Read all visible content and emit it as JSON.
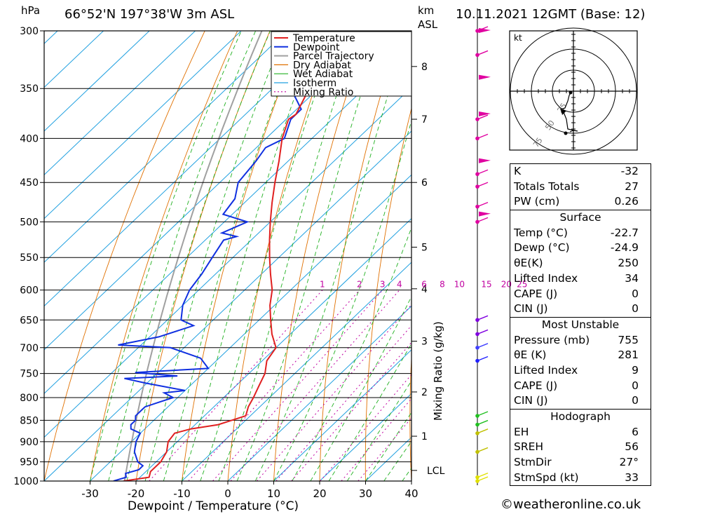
{
  "header": {
    "left_unit": "hPa",
    "location": "66°52'N  197°38'W  3m  ASL",
    "km_unit_1": "km",
    "km_unit_2": "ASL",
    "date": "10.11.2021  12GMT  (Base: 12)"
  },
  "chart_data": {
    "type": "line",
    "title": "66°52'N  197°38'W  3m  ASL",
    "xlabel": "Dewpoint / Temperature (°C)",
    "ylabel": "hPa",
    "right_axis_label": "Mixing Ratio (g/kg)",
    "pressure_levels": [
      300,
      350,
      400,
      450,
      500,
      550,
      600,
      650,
      700,
      750,
      800,
      850,
      900,
      950,
      1000
    ],
    "x_ticks": [
      -30,
      -20,
      -10,
      0,
      10,
      20,
      30,
      40
    ],
    "xlim": [
      -40,
      40
    ],
    "ylim": [
      1000,
      300
    ],
    "km_ticks": [
      {
        "label": "8",
        "p": 330
      },
      {
        "label": "7",
        "p": 380
      },
      {
        "label": "6",
        "p": 450
      },
      {
        "label": "5",
        "p": 535
      },
      {
        "label": "4",
        "p": 598
      },
      {
        "label": "3",
        "p": 688
      },
      {
        "label": "2",
        "p": 788
      },
      {
        "label": "1",
        "p": 887
      },
      {
        "label": "LCL",
        "p": 972
      }
    ],
    "legend": [
      "Temperature",
      "Dewpoint",
      "Parcel Trajectory",
      "Dry Adiabat",
      "Wet Adiabat",
      "Isotherm",
      "Mixing Ratio"
    ],
    "mixing_ratio_labels": [
      "1",
      "2",
      "3",
      "4",
      "6",
      "8",
      "10",
      "15",
      "20",
      "25"
    ],
    "colors": {
      "temperature": "#e02020",
      "dewpoint": "#1030e0",
      "parcel": "#a0a0a0",
      "dry_adiabat": "#e07000",
      "wet_adiabat": "#20b020",
      "isotherm": "#20a0e0",
      "mixing_ratio": "#c000a0"
    }
  },
  "hodograph": {
    "unit": "kt",
    "ring_labels": [
      "25",
      "50",
      "75"
    ]
  },
  "indices": {
    "rows": [
      {
        "label": "K",
        "value": "-32"
      },
      {
        "label": "Totals Totals",
        "value": "27"
      },
      {
        "label": "PW (cm)",
        "value": "0.26"
      }
    ]
  },
  "surface": {
    "title": "Surface",
    "rows": [
      {
        "label": "Temp (°C)",
        "value": "-22.7"
      },
      {
        "label": "Dewp (°C)",
        "value": "-24.9"
      },
      {
        "label": "θE(K)",
        "value": "250"
      },
      {
        "label": "Lifted Index",
        "value": "34"
      },
      {
        "label": "CAPE (J)",
        "value": "0"
      },
      {
        "label": "CIN (J)",
        "value": "0"
      }
    ]
  },
  "most_unstable": {
    "title": "Most Unstable",
    "rows": [
      {
        "label": "Pressure (mb)",
        "value": "755"
      },
      {
        "label": "θE (K)",
        "value": "281"
      },
      {
        "label": "Lifted Index",
        "value": "9"
      },
      {
        "label": "CAPE (J)",
        "value": "0"
      },
      {
        "label": "CIN (J)",
        "value": "0"
      }
    ]
  },
  "hodograph_table": {
    "title": "Hodograph",
    "rows": [
      {
        "label": "EH",
        "value": "6"
      },
      {
        "label": "SREH",
        "value": "56"
      },
      {
        "label": "StmDir",
        "value": "27°"
      },
      {
        "label": "StmSpd (kt)",
        "value": "33"
      }
    ]
  },
  "credit": "©weatheronline.co.uk"
}
